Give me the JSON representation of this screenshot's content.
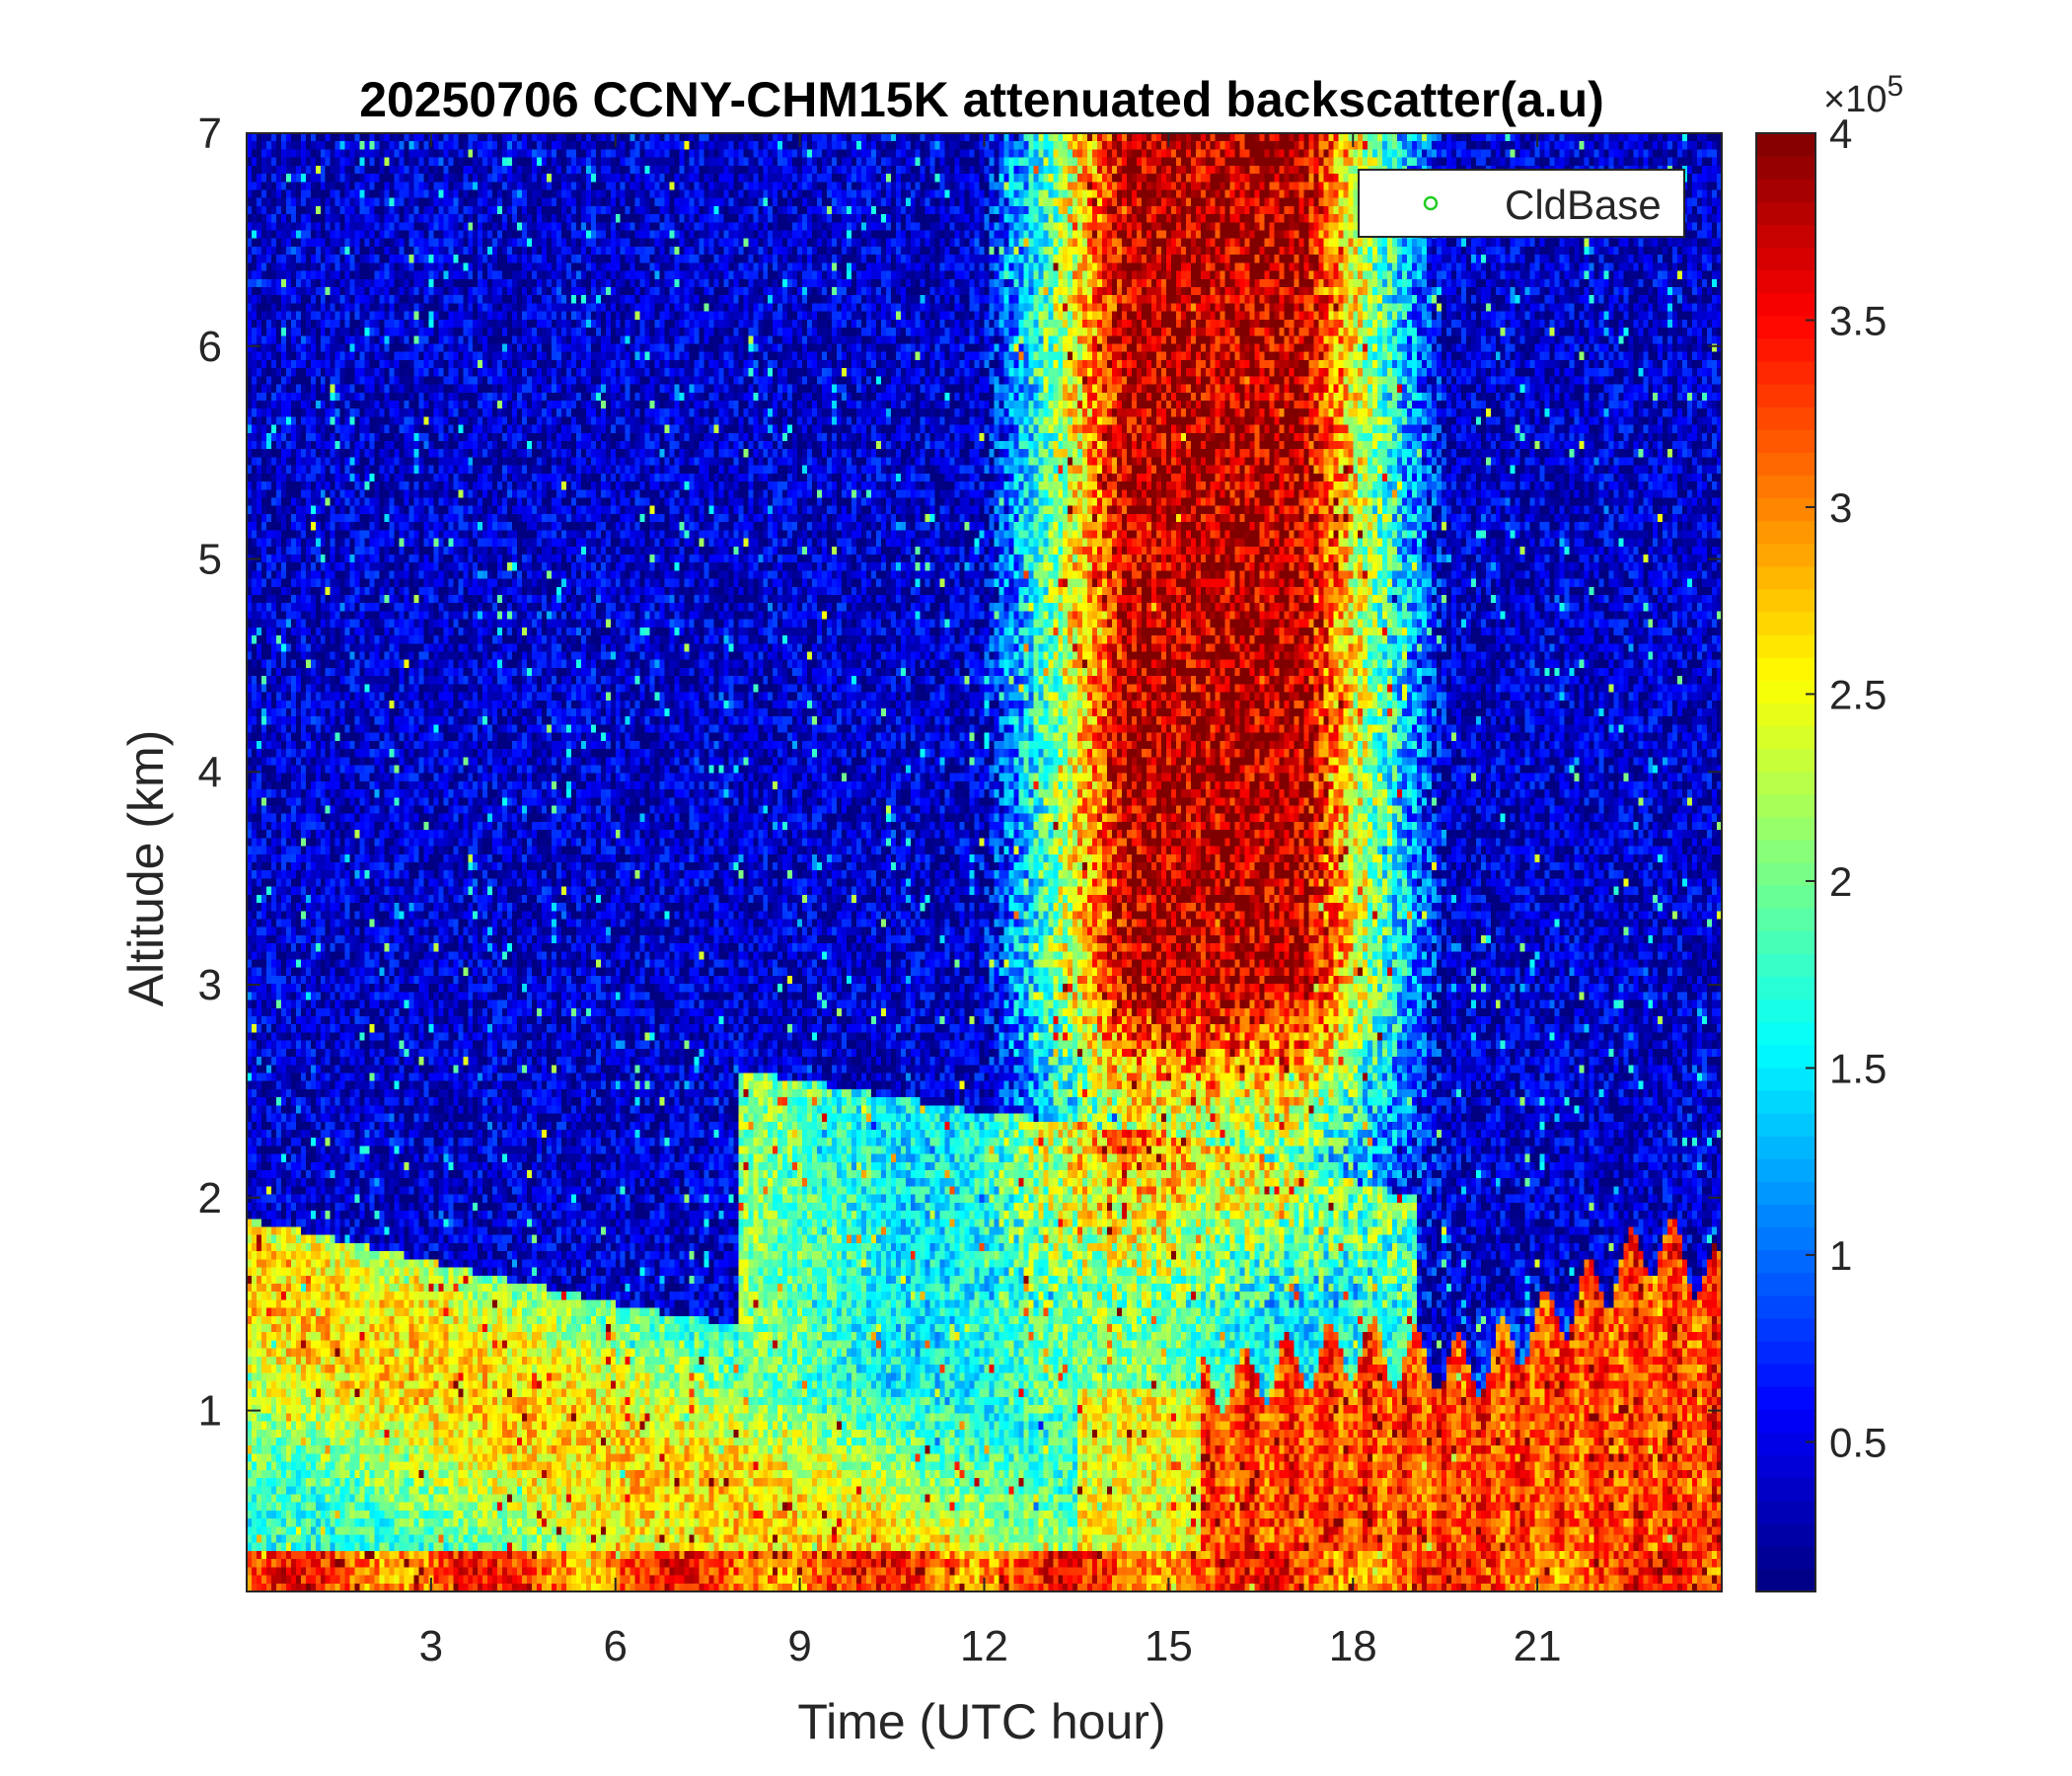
{
  "chart_data": {
    "type": "heatmap",
    "title": "20250706 CCNY-CHM15K attenuated backscatter(a.u)",
    "xlabel": "Time (UTC hour)",
    "ylabel": "Altitude (km)",
    "xlim": [
      0,
      24
    ],
    "ylim": [
      0.15,
      7
    ],
    "xticks": [
      3,
      6,
      9,
      12,
      15,
      18,
      21
    ],
    "yticks": [
      1,
      2,
      3,
      4,
      5,
      6,
      7
    ],
    "colormap": "jet",
    "colorbar": {
      "min": 0.1,
      "max": 4,
      "ticks": [
        0.5,
        1,
        1.5,
        2,
        2.5,
        3,
        3.5,
        4
      ],
      "exponent_label": "×10",
      "exponent": "5"
    },
    "legend": {
      "entries": [
        {
          "label": "CldBase",
          "marker": "circle",
          "color": "#22cc22"
        }
      ],
      "placement": "top-right"
    },
    "layers": [
      {
        "name": "surface layer",
        "alt_km": [
          0.15,
          0.35
        ],
        "value_e5": 3.2
      },
      {
        "name": "residual aerosol layer top",
        "time_h": [
          0,
          3,
          6,
          8,
          10,
          12
        ],
        "top_km": [
          1.9,
          1.7,
          1.5,
          1.4,
          1.3,
          1.2
        ],
        "value_e5": 2.2
      },
      {
        "name": "elevated aerosol layer",
        "time_h": [
          8,
          12,
          15,
          19
        ],
        "top_km": [
          2.6,
          2.4,
          2.3,
          2.0
        ],
        "value_e5": 1.8
      },
      {
        "name": "convective boundary layer",
        "time_h": [
          15.5,
          18,
          20,
          23,
          24
        ],
        "top_km": [
          1.1,
          1.3,
          1.2,
          1.8,
          1.6
        ],
        "value_e5": 3.5
      },
      {
        "name": "daytime solar noise",
        "time_h": [
          12,
          19.5
        ],
        "alt_km": [
          1.5,
          7
        ],
        "value_e5": 3.8
      },
      {
        "name": "free troposphere",
        "alt_km": [
          2.0,
          7
        ],
        "value_e5": 0.4
      }
    ]
  }
}
